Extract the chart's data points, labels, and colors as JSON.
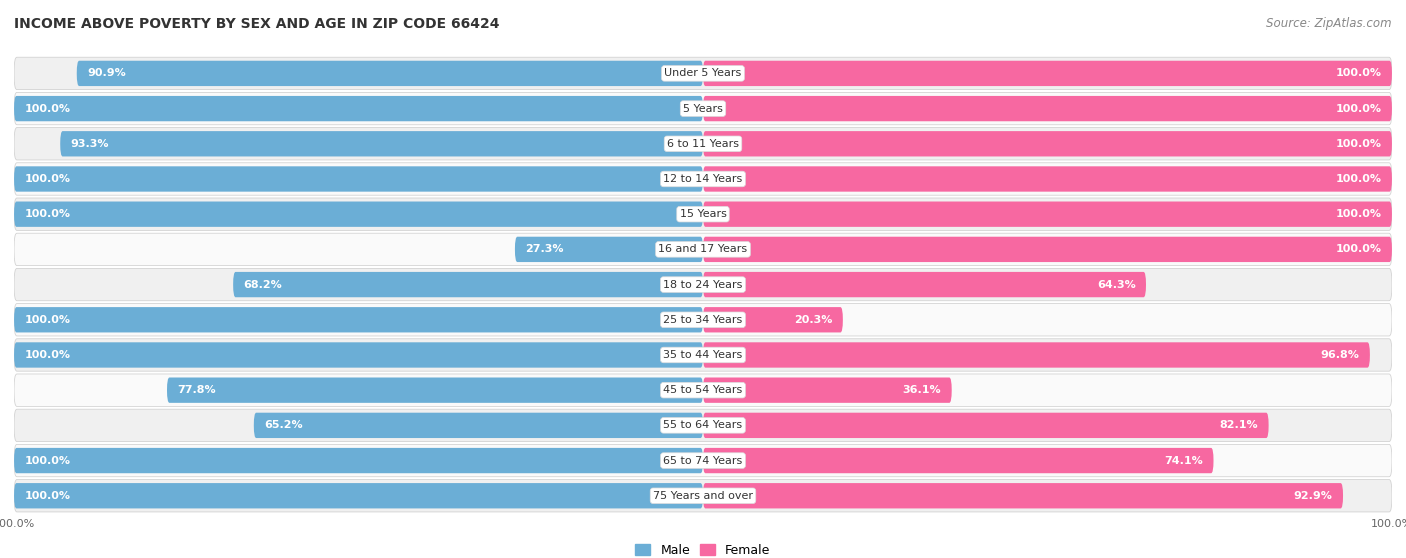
{
  "title": "INCOME ABOVE POVERTY BY SEX AND AGE IN ZIP CODE 66424",
  "source": "Source: ZipAtlas.com",
  "categories": [
    "Under 5 Years",
    "5 Years",
    "6 to 11 Years",
    "12 to 14 Years",
    "15 Years",
    "16 and 17 Years",
    "18 to 24 Years",
    "25 to 34 Years",
    "35 to 44 Years",
    "45 to 54 Years",
    "55 to 64 Years",
    "65 to 74 Years",
    "75 Years and over"
  ],
  "male_values": [
    90.9,
    100.0,
    93.3,
    100.0,
    100.0,
    27.3,
    68.2,
    100.0,
    100.0,
    77.8,
    65.2,
    100.0,
    100.0
  ],
  "female_values": [
    100.0,
    100.0,
    100.0,
    100.0,
    100.0,
    100.0,
    64.3,
    20.3,
    96.8,
    36.1,
    82.1,
    74.1,
    92.9
  ],
  "male_color": "#6BAED6",
  "female_color": "#F768A1",
  "bg_color": "#ffffff",
  "row_bg_even": "#f0f0f0",
  "row_bg_odd": "#fafafa",
  "title_fontsize": 10,
  "source_fontsize": 8.5,
  "label_fontsize": 8,
  "bar_label_fontsize": 8,
  "axis_label_fontsize": 8,
  "legend_fontsize": 9
}
